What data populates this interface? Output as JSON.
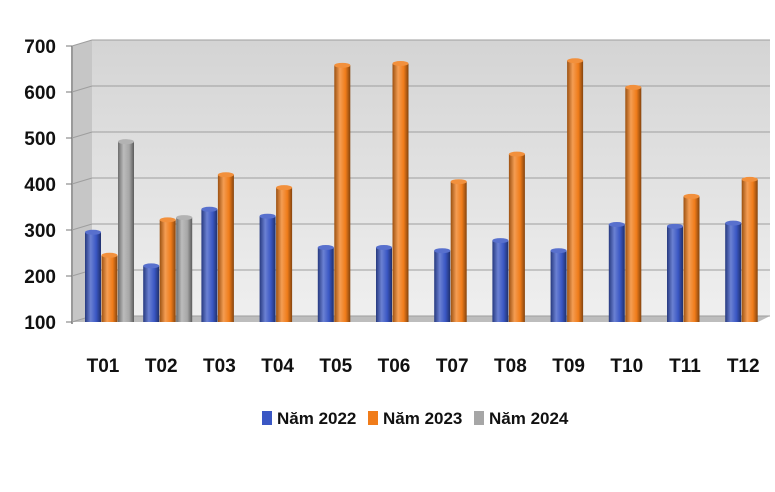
{
  "chart_data": {
    "type": "bar",
    "categories": [
      "T01",
      "T02",
      "T03",
      "T04",
      "T05",
      "T06",
      "T07",
      "T08",
      "T09",
      "T10",
      "T11",
      "T12"
    ],
    "series": [
      {
        "name": "Năm 2022",
        "color": "#3a57c4",
        "values": [
          295,
          222,
          345,
          330,
          262,
          262,
          255,
          277,
          255,
          312,
          308,
          315
        ]
      },
      {
        "name": "Năm 2023",
        "color": "#f07c1a",
        "values": [
          245,
          322,
          420,
          392,
          658,
          662,
          405,
          465,
          668,
          610,
          373,
          410
        ]
      },
      {
        "name": "Năm 2024",
        "color": "#a6a6a6",
        "values": [
          492,
          327,
          null,
          null,
          null,
          null,
          null,
          null,
          null,
          null,
          null,
          null
        ]
      }
    ],
    "ylim": [
      100,
      700
    ],
    "yticks": [
      100,
      200,
      300,
      400,
      500,
      600,
      700
    ],
    "grid": true,
    "legend": "bottom",
    "title": "",
    "xlabel": "",
    "ylabel": ""
  }
}
